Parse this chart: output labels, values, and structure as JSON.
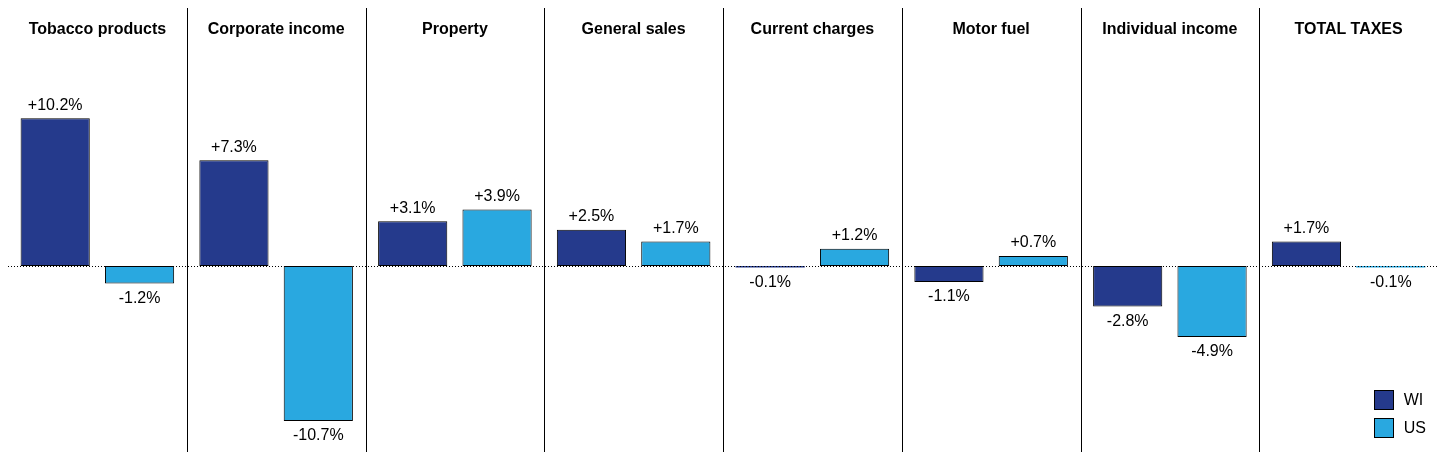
{
  "chart_data": {
    "type": "bar",
    "categories": [
      "Tobacco products",
      "Corporate income",
      "Property",
      "General sales",
      "Current charges",
      "Motor fuel",
      "Individual income",
      "TOTAL TAXES"
    ],
    "series": [
      {
        "name": "WI",
        "color": "#253a8c",
        "values": [
          10.2,
          7.3,
          3.1,
          2.5,
          -0.1,
          -1.1,
          -2.8,
          1.7
        ],
        "value_labels": [
          "+10.2%",
          "+7.3%",
          "+3.1%",
          "+2.5%",
          "-0.1%",
          "-1.1%",
          "-2.8%",
          "+1.7%"
        ]
      },
      {
        "name": "US",
        "color": "#29a8e0",
        "values": [
          -1.2,
          -10.7,
          3.9,
          1.7,
          1.2,
          0.7,
          -4.9,
          -0.1
        ],
        "value_labels": [
          "-1.2%",
          "-10.7%",
          "+3.9%",
          "+1.7%",
          "+1.2%",
          "+0.7%",
          "-4.9%",
          "-0.1%"
        ]
      }
    ],
    "ref_lines": [
      {
        "axis": "y",
        "value": 0,
        "line_style": "dotted",
        "color": "#000000"
      }
    ],
    "grid": "x",
    "legend": "bottom right",
    "tick_labels": "x"
  }
}
